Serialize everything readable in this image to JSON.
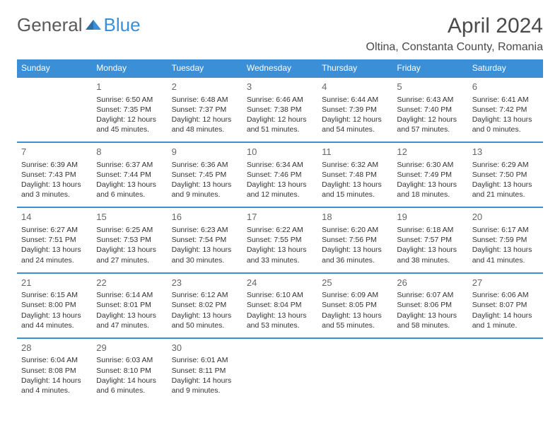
{
  "logo": {
    "part1": "General",
    "part2": "Blue"
  },
  "title": "April 2024",
  "location": "Oltina, Constanta County, Romania",
  "colors": {
    "header_bg": "#3b8fd6",
    "header_text": "#ffffff",
    "border": "#3b8fd6",
    "text": "#333333",
    "title_text": "#4a4a4a",
    "body_bg": "#ffffff"
  },
  "typography": {
    "title_fontsize": 30,
    "location_fontsize": 16,
    "dayheader_fontsize": 12,
    "daynum_fontsize": 13,
    "cell_fontsize": 10.5
  },
  "day_headers": [
    "Sunday",
    "Monday",
    "Tuesday",
    "Wednesday",
    "Thursday",
    "Friday",
    "Saturday"
  ],
  "weeks": [
    [
      null,
      {
        "n": "1",
        "sunrise": "Sunrise: 6:50 AM",
        "sunset": "Sunset: 7:35 PM",
        "day1": "Daylight: 12 hours",
        "day2": "and 45 minutes."
      },
      {
        "n": "2",
        "sunrise": "Sunrise: 6:48 AM",
        "sunset": "Sunset: 7:37 PM",
        "day1": "Daylight: 12 hours",
        "day2": "and 48 minutes."
      },
      {
        "n": "3",
        "sunrise": "Sunrise: 6:46 AM",
        "sunset": "Sunset: 7:38 PM",
        "day1": "Daylight: 12 hours",
        "day2": "and 51 minutes."
      },
      {
        "n": "4",
        "sunrise": "Sunrise: 6:44 AM",
        "sunset": "Sunset: 7:39 PM",
        "day1": "Daylight: 12 hours",
        "day2": "and 54 minutes."
      },
      {
        "n": "5",
        "sunrise": "Sunrise: 6:43 AM",
        "sunset": "Sunset: 7:40 PM",
        "day1": "Daylight: 12 hours",
        "day2": "and 57 minutes."
      },
      {
        "n": "6",
        "sunrise": "Sunrise: 6:41 AM",
        "sunset": "Sunset: 7:42 PM",
        "day1": "Daylight: 13 hours",
        "day2": "and 0 minutes."
      }
    ],
    [
      {
        "n": "7",
        "sunrise": "Sunrise: 6:39 AM",
        "sunset": "Sunset: 7:43 PM",
        "day1": "Daylight: 13 hours",
        "day2": "and 3 minutes."
      },
      {
        "n": "8",
        "sunrise": "Sunrise: 6:37 AM",
        "sunset": "Sunset: 7:44 PM",
        "day1": "Daylight: 13 hours",
        "day2": "and 6 minutes."
      },
      {
        "n": "9",
        "sunrise": "Sunrise: 6:36 AM",
        "sunset": "Sunset: 7:45 PM",
        "day1": "Daylight: 13 hours",
        "day2": "and 9 minutes."
      },
      {
        "n": "10",
        "sunrise": "Sunrise: 6:34 AM",
        "sunset": "Sunset: 7:46 PM",
        "day1": "Daylight: 13 hours",
        "day2": "and 12 minutes."
      },
      {
        "n": "11",
        "sunrise": "Sunrise: 6:32 AM",
        "sunset": "Sunset: 7:48 PM",
        "day1": "Daylight: 13 hours",
        "day2": "and 15 minutes."
      },
      {
        "n": "12",
        "sunrise": "Sunrise: 6:30 AM",
        "sunset": "Sunset: 7:49 PM",
        "day1": "Daylight: 13 hours",
        "day2": "and 18 minutes."
      },
      {
        "n": "13",
        "sunrise": "Sunrise: 6:29 AM",
        "sunset": "Sunset: 7:50 PM",
        "day1": "Daylight: 13 hours",
        "day2": "and 21 minutes."
      }
    ],
    [
      {
        "n": "14",
        "sunrise": "Sunrise: 6:27 AM",
        "sunset": "Sunset: 7:51 PM",
        "day1": "Daylight: 13 hours",
        "day2": "and 24 minutes."
      },
      {
        "n": "15",
        "sunrise": "Sunrise: 6:25 AM",
        "sunset": "Sunset: 7:53 PM",
        "day1": "Daylight: 13 hours",
        "day2": "and 27 minutes."
      },
      {
        "n": "16",
        "sunrise": "Sunrise: 6:23 AM",
        "sunset": "Sunset: 7:54 PM",
        "day1": "Daylight: 13 hours",
        "day2": "and 30 minutes."
      },
      {
        "n": "17",
        "sunrise": "Sunrise: 6:22 AM",
        "sunset": "Sunset: 7:55 PM",
        "day1": "Daylight: 13 hours",
        "day2": "and 33 minutes."
      },
      {
        "n": "18",
        "sunrise": "Sunrise: 6:20 AM",
        "sunset": "Sunset: 7:56 PM",
        "day1": "Daylight: 13 hours",
        "day2": "and 36 minutes."
      },
      {
        "n": "19",
        "sunrise": "Sunrise: 6:18 AM",
        "sunset": "Sunset: 7:57 PM",
        "day1": "Daylight: 13 hours",
        "day2": "and 38 minutes."
      },
      {
        "n": "20",
        "sunrise": "Sunrise: 6:17 AM",
        "sunset": "Sunset: 7:59 PM",
        "day1": "Daylight: 13 hours",
        "day2": "and 41 minutes."
      }
    ],
    [
      {
        "n": "21",
        "sunrise": "Sunrise: 6:15 AM",
        "sunset": "Sunset: 8:00 PM",
        "day1": "Daylight: 13 hours",
        "day2": "and 44 minutes."
      },
      {
        "n": "22",
        "sunrise": "Sunrise: 6:14 AM",
        "sunset": "Sunset: 8:01 PM",
        "day1": "Daylight: 13 hours",
        "day2": "and 47 minutes."
      },
      {
        "n": "23",
        "sunrise": "Sunrise: 6:12 AM",
        "sunset": "Sunset: 8:02 PM",
        "day1": "Daylight: 13 hours",
        "day2": "and 50 minutes."
      },
      {
        "n": "24",
        "sunrise": "Sunrise: 6:10 AM",
        "sunset": "Sunset: 8:04 PM",
        "day1": "Daylight: 13 hours",
        "day2": "and 53 minutes."
      },
      {
        "n": "25",
        "sunrise": "Sunrise: 6:09 AM",
        "sunset": "Sunset: 8:05 PM",
        "day1": "Daylight: 13 hours",
        "day2": "and 55 minutes."
      },
      {
        "n": "26",
        "sunrise": "Sunrise: 6:07 AM",
        "sunset": "Sunset: 8:06 PM",
        "day1": "Daylight: 13 hours",
        "day2": "and 58 minutes."
      },
      {
        "n": "27",
        "sunrise": "Sunrise: 6:06 AM",
        "sunset": "Sunset: 8:07 PM",
        "day1": "Daylight: 14 hours",
        "day2": "and 1 minute."
      }
    ],
    [
      {
        "n": "28",
        "sunrise": "Sunrise: 6:04 AM",
        "sunset": "Sunset: 8:08 PM",
        "day1": "Daylight: 14 hours",
        "day2": "and 4 minutes."
      },
      {
        "n": "29",
        "sunrise": "Sunrise: 6:03 AM",
        "sunset": "Sunset: 8:10 PM",
        "day1": "Daylight: 14 hours",
        "day2": "and 6 minutes."
      },
      {
        "n": "30",
        "sunrise": "Sunrise: 6:01 AM",
        "sunset": "Sunset: 8:11 PM",
        "day1": "Daylight: 14 hours",
        "day2": "and 9 minutes."
      },
      null,
      null,
      null,
      null
    ]
  ]
}
